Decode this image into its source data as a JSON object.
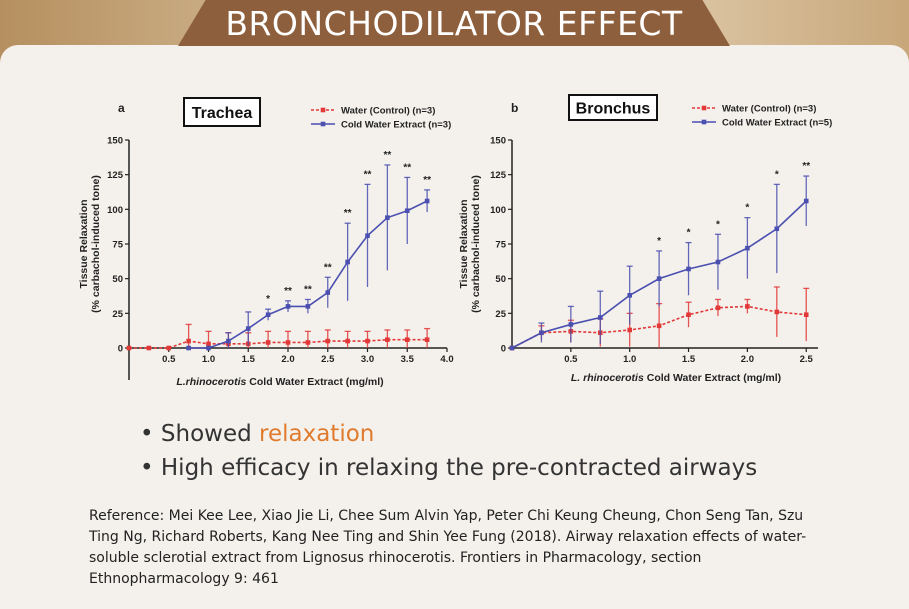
{
  "banner": {
    "title": "BRONCHODILATOR EFFECT"
  },
  "bullets": [
    {
      "prefix": "Showed ",
      "highlight": "relaxation"
    },
    {
      "text": "High efficacy in relaxing the pre-contracted airways"
    }
  ],
  "reference": "Reference: Mei Kee Lee, Xiao Jie Li, Chee Sum Alvin Yap, Peter Chi Keung Cheung, Chon Seng Tan, Szu Ting Ng, Richard Roberts, Kang Nee Ting and Shin Yee Fung (2018). Airway relaxation effects of water-soluble sclerotial extract from Lignosus rhinocerotis. Frontiers in Pharmacology, section Ethnopharmacology 9: 461",
  "colors": {
    "control": "#e23838",
    "extract": "#4a4fb0",
    "accent": "#e07b2e",
    "banner": "#8e5f3c"
  },
  "chart_data": [
    {
      "panel": "a",
      "title": "Trachea",
      "type": "line",
      "ylabel_lines": [
        "Tissue Relaxation",
        "(% carbachol-induced tone)"
      ],
      "xlabel_italic": "L.rhinocerotis",
      "xlabel_rest": " Cold Water Extract (mg/ml)",
      "xlim": [
        0,
        4.0
      ],
      "ylim": [
        0,
        150
      ],
      "xticks": [
        0.5,
        1.0,
        1.5,
        2.0,
        2.5,
        3.0,
        3.5,
        4.0
      ],
      "xtick_labels": [
        "0.5",
        "1.0",
        "1.5",
        "2.0",
        "2.5",
        "3.0",
        "3.5",
        "4.0"
      ],
      "yticks": [
        0,
        25,
        50,
        75,
        100,
        125,
        150
      ],
      "ytick_labels": [
        "0",
        "25",
        "50",
        "75",
        "100",
        "125",
        "150"
      ],
      "legend_position": "top-right",
      "series": [
        {
          "name": "Water (Control) (n=3)",
          "style": "dashed",
          "color": "#e23838",
          "x": [
            0,
            0.25,
            0.5,
            0.75,
            1.0,
            1.25,
            1.5,
            1.75,
            2.0,
            2.25,
            2.5,
            2.75,
            3.0,
            3.25,
            3.5,
            3.75
          ],
          "y": [
            0,
            0,
            0,
            5,
            3,
            3,
            3,
            4,
            4,
            4,
            5,
            5,
            5,
            6,
            6,
            6
          ],
          "err": [
            0,
            0,
            0,
            12,
            9,
            8,
            8,
            8,
            8,
            8,
            8,
            7,
            7,
            7,
            7,
            8
          ]
        },
        {
          "name": "Cold Water Extract (n=3)",
          "style": "solid",
          "color": "#4a4fb0",
          "x": [
            0.75,
            1.0,
            1.25,
            1.5,
            1.75,
            2.0,
            2.25,
            2.5,
            2.75,
            3.0,
            3.25,
            3.5,
            3.75
          ],
          "y": [
            0,
            0,
            5,
            14,
            24,
            30,
            30,
            40,
            62,
            81,
            94,
            99,
            106
          ],
          "err": [
            0,
            0,
            6,
            12,
            4,
            4,
            5,
            11,
            28,
            37,
            38,
            24,
            8
          ]
        }
      ],
      "significance": [
        {
          "x": 1.75,
          "label": "*"
        },
        {
          "x": 2.0,
          "label": "**"
        },
        {
          "x": 2.25,
          "label": "**"
        },
        {
          "x": 2.5,
          "label": "**"
        },
        {
          "x": 2.75,
          "label": "**"
        },
        {
          "x": 3.0,
          "label": "**"
        },
        {
          "x": 3.25,
          "label": "**"
        },
        {
          "x": 3.5,
          "label": "**"
        },
        {
          "x": 3.75,
          "label": "**"
        }
      ]
    },
    {
      "panel": "b",
      "title": "Bronchus",
      "type": "line",
      "ylabel_lines": [
        "Tissue Relaxation",
        "(% carbachol-induced tone)"
      ],
      "xlabel_italic": "L. rhinocerotis",
      "xlabel_rest": " Cold Water Extract (mg/ml)",
      "xlim": [
        0,
        2.6
      ],
      "ylim": [
        0,
        150
      ],
      "xticks": [
        0.5,
        1.0,
        1.5,
        2.0,
        2.5
      ],
      "xtick_labels": [
        "0.5",
        "1.0",
        "1.5",
        "2.0",
        "2.5"
      ],
      "yticks": [
        0,
        25,
        50,
        75,
        100,
        125,
        150
      ],
      "ytick_labels": [
        "0",
        "25",
        "50",
        "75",
        "100",
        "125",
        "150"
      ],
      "legend_position": "top-right",
      "series": [
        {
          "name": "Water (Control) (n=3)",
          "style": "dashed",
          "color": "#e23838",
          "x": [
            0,
            0.25,
            0.5,
            0.75,
            1.0,
            1.25,
            1.5,
            1.75,
            2.0,
            2.25,
            2.5
          ],
          "y": [
            0,
            11,
            12,
            11,
            13,
            16,
            24,
            29,
            30,
            26,
            24
          ],
          "err": [
            0,
            5,
            8,
            10,
            12,
            16,
            9,
            6,
            5,
            18,
            19
          ]
        },
        {
          "name": "Cold Water Extract (n=5)",
          "style": "solid",
          "color": "#4a4fb0",
          "x": [
            0,
            0.25,
            0.5,
            0.75,
            1.0,
            1.25,
            1.5,
            1.75,
            2.0,
            2.25,
            2.5
          ],
          "y": [
            0,
            11,
            17,
            22,
            38,
            50,
            57,
            62,
            72,
            86,
            106
          ],
          "err": [
            0,
            7,
            13,
            19,
            21,
            20,
            19,
            20,
            22,
            32,
            18
          ]
        }
      ],
      "significance": [
        {
          "x": 1.25,
          "label": "*"
        },
        {
          "x": 1.5,
          "label": "*"
        },
        {
          "x": 1.75,
          "label": "*"
        },
        {
          "x": 2.0,
          "label": "*"
        },
        {
          "x": 2.25,
          "label": "*"
        },
        {
          "x": 2.5,
          "label": "**"
        }
      ]
    }
  ]
}
